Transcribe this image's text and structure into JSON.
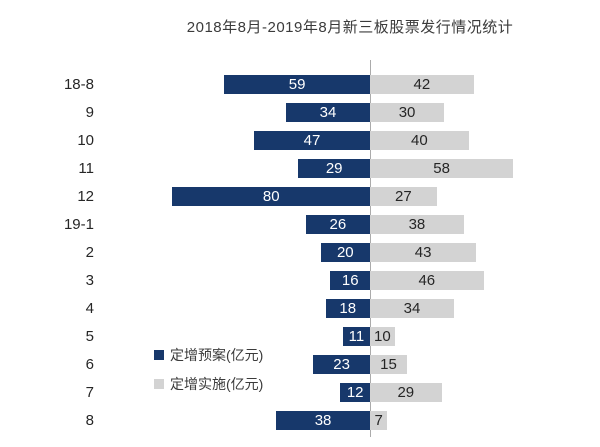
{
  "chart_data": {
    "type": "bar",
    "variant": "tornado-horizontal",
    "title": "2018年8月-2019年8月新三板股票发行情况统计",
    "categories": [
      "18-8",
      "9",
      "10",
      "11",
      "12",
      "19-1",
      "2",
      "3",
      "4",
      "5",
      "6",
      "7",
      "8"
    ],
    "series": [
      {
        "name": "定增预案(亿元)",
        "side": "left",
        "color": "#17386b",
        "label_color": "#ffffff",
        "values": [
          59,
          34,
          47,
          29,
          80,
          26,
          20,
          16,
          18,
          11,
          23,
          12,
          38
        ]
      },
      {
        "name": "定增实施(亿元)",
        "side": "right",
        "color": "#d3d3d3",
        "label_color": "#262626",
        "values": [
          42,
          30,
          40,
          58,
          27,
          38,
          43,
          46,
          34,
          10,
          15,
          29,
          7
        ]
      }
    ],
    "axis": {
      "center_line_color": "#ababab",
      "grid": false
    },
    "legend_position": "inside-left-bottom"
  }
}
